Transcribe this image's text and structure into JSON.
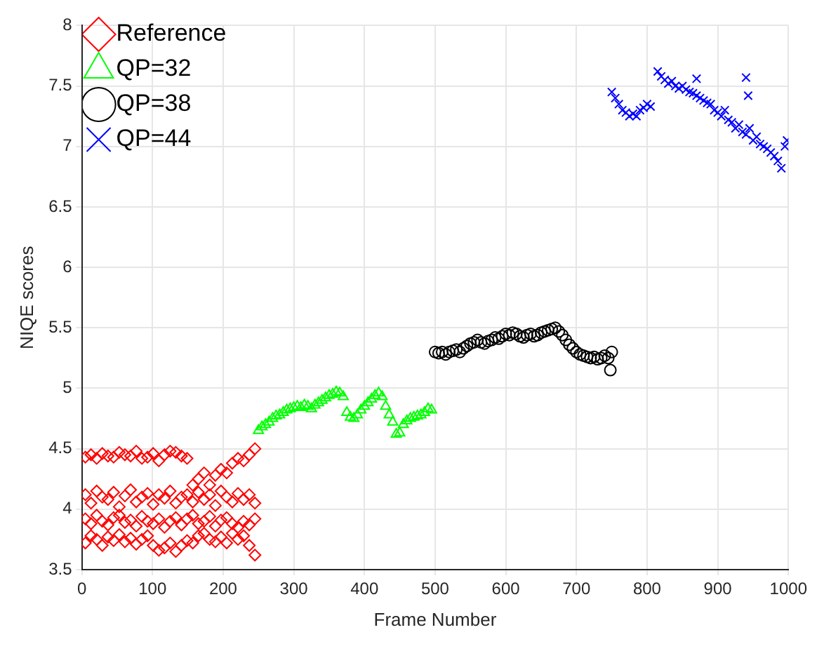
{
  "chart_data": {
    "type": "scatter",
    "xlabel": "Frame Number",
    "ylabel": "NIQE scores",
    "xlim": [
      0,
      1000
    ],
    "xticks": [
      0,
      100,
      200,
      300,
      400,
      500,
      600,
      700,
      800,
      900,
      1000
    ],
    "ylim": [
      3.5,
      8
    ],
    "yticks": [
      3.5,
      4,
      4.5,
      5,
      5.5,
      6,
      6.5,
      7,
      7.5,
      8
    ],
    "grid": true,
    "legend": "top left",
    "series": [
      {
        "name": "Reference",
        "color": "#ff0000",
        "marker": "diamond",
        "x": [
          5,
          13,
          21,
          29,
          37,
          45,
          53,
          61,
          69,
          77,
          85,
          93,
          101,
          109,
          117,
          125,
          133,
          141,
          149,
          157,
          165,
          173,
          181,
          189,
          197,
          205,
          213,
          221,
          229,
          237,
          245,
          5,
          13,
          21,
          29,
          37,
          45,
          53,
          61,
          69,
          77,
          85,
          93,
          101,
          109,
          117,
          125,
          133,
          141,
          149,
          157,
          165,
          173,
          181,
          189,
          197,
          205,
          213,
          221,
          229,
          237,
          245,
          5,
          13,
          21,
          29,
          37,
          45,
          53,
          61,
          69,
          77,
          85,
          93,
          101,
          109,
          117,
          125,
          133,
          141,
          149,
          157,
          165,
          173,
          181,
          189,
          197,
          205,
          213,
          221,
          229,
          237,
          245,
          5,
          13,
          21,
          29,
          37,
          45,
          53,
          61,
          69,
          77,
          85,
          93,
          101,
          109,
          117,
          125,
          133,
          141,
          149,
          157,
          165,
          173,
          181,
          189,
          197,
          205,
          213,
          221,
          229,
          237,
          245
        ],
        "values": [
          4.43,
          4.45,
          4.42,
          4.46,
          4.44,
          4.43,
          4.47,
          4.45,
          4.44,
          4.48,
          4.42,
          4.43,
          4.46,
          4.4,
          4.45,
          4.48,
          4.47,
          4.44,
          4.42,
          4.2,
          4.25,
          4.3,
          4.2,
          4.28,
          4.33,
          4.3,
          4.38,
          4.42,
          4.4,
          4.45,
          4.5,
          4.12,
          4.05,
          4.15,
          4.1,
          4.08,
          4.14,
          4.02,
          4.11,
          4.16,
          4.06,
          4.1,
          4.13,
          4.04,
          4.12,
          4.09,
          4.15,
          4.05,
          4.1,
          4.12,
          4.06,
          4.14,
          4.08,
          4.12,
          4.03,
          4.15,
          4.1,
          4.06,
          4.13,
          4.08,
          4.12,
          4.05,
          3.92,
          3.88,
          3.95,
          3.9,
          3.87,
          3.93,
          3.95,
          3.89,
          3.91,
          3.86,
          3.94,
          3.9,
          3.88,
          3.92,
          3.85,
          3.9,
          3.93,
          3.87,
          3.92,
          3.95,
          3.88,
          3.9,
          3.94,
          3.86,
          3.91,
          3.93,
          3.88,
          3.85,
          3.9,
          3.87,
          3.92,
          3.72,
          3.78,
          3.75,
          3.7,
          3.77,
          3.74,
          3.79,
          3.73,
          3.76,
          3.71,
          3.75,
          3.78,
          3.7,
          3.66,
          3.68,
          3.72,
          3.65,
          3.7,
          3.74,
          3.72,
          3.78,
          3.8,
          3.75,
          3.73,
          3.77,
          3.72,
          3.8,
          3.75,
          3.78,
          3.7,
          3.62
        ]
      },
      {
        "name": "QP=32",
        "color": "#00ff00",
        "marker": "triangle",
        "x": [
          250,
          255,
          260,
          265,
          270,
          275,
          280,
          285,
          290,
          295,
          300,
          305,
          310,
          315,
          320,
          325,
          330,
          335,
          340,
          345,
          350,
          355,
          360,
          365,
          370,
          375,
          380,
          385,
          390,
          395,
          400,
          405,
          410,
          415,
          420,
          425,
          430,
          435,
          440,
          445,
          450,
          455,
          460,
          465,
          470,
          475,
          480,
          485,
          490,
          495
        ],
        "values": [
          4.65,
          4.68,
          4.7,
          4.72,
          4.75,
          4.77,
          4.78,
          4.8,
          4.82,
          4.83,
          4.84,
          4.85,
          4.84,
          4.86,
          4.85,
          4.83,
          4.86,
          4.88,
          4.9,
          4.92,
          4.94,
          4.95,
          4.97,
          4.96,
          4.93,
          4.8,
          4.76,
          4.75,
          4.78,
          4.82,
          4.85,
          4.88,
          4.91,
          4.94,
          4.96,
          4.93,
          4.85,
          4.78,
          4.72,
          4.62,
          4.63,
          4.7,
          4.73,
          4.75,
          4.76,
          4.77,
          4.78,
          4.8,
          4.83,
          4.82
        ]
      },
      {
        "name": "QP=38",
        "color": "#000000",
        "marker": "circle",
        "x": [
          500,
          505,
          510,
          515,
          520,
          525,
          530,
          535,
          540,
          545,
          550,
          555,
          560,
          565,
          570,
          575,
          580,
          585,
          590,
          595,
          600,
          605,
          610,
          615,
          620,
          625,
          630,
          635,
          640,
          645,
          650,
          655,
          660,
          665,
          670,
          675,
          680,
          685,
          690,
          695,
          700,
          705,
          710,
          715,
          720,
          725,
          730,
          735,
          740,
          745,
          750,
          748
        ],
        "values": [
          5.3,
          5.29,
          5.3,
          5.28,
          5.3,
          5.31,
          5.32,
          5.3,
          5.33,
          5.35,
          5.37,
          5.38,
          5.4,
          5.38,
          5.37,
          5.39,
          5.4,
          5.42,
          5.41,
          5.43,
          5.45,
          5.44,
          5.46,
          5.45,
          5.43,
          5.42,
          5.44,
          5.45,
          5.43,
          5.44,
          5.46,
          5.47,
          5.48,
          5.49,
          5.5,
          5.47,
          5.44,
          5.4,
          5.36,
          5.33,
          5.3,
          5.28,
          5.27,
          5.26,
          5.25,
          5.26,
          5.24,
          5.25,
          5.27,
          5.25,
          5.3,
          5.15
        ]
      },
      {
        "name": "QP=44",
        "color": "#0000ff",
        "marker": "cross",
        "x": [
          750,
          755,
          760,
          765,
          770,
          775,
          780,
          785,
          790,
          795,
          800,
          805,
          815,
          820,
          825,
          830,
          835,
          840,
          845,
          850,
          855,
          860,
          865,
          870,
          875,
          880,
          885,
          890,
          895,
          900,
          905,
          910,
          915,
          920,
          925,
          930,
          935,
          940,
          945,
          950,
          955,
          960,
          965,
          970,
          975,
          980,
          985,
          990,
          995,
          998,
          870,
          940,
          943
        ],
        "values": [
          7.45,
          7.4,
          7.35,
          7.3,
          7.28,
          7.25,
          7.27,
          7.25,
          7.3,
          7.32,
          7.35,
          7.33,
          7.62,
          7.58,
          7.55,
          7.52,
          7.54,
          7.5,
          7.48,
          7.5,
          7.47,
          7.45,
          7.44,
          7.42,
          7.4,
          7.38,
          7.36,
          7.35,
          7.3,
          7.28,
          7.25,
          7.3,
          7.22,
          7.2,
          7.15,
          7.18,
          7.12,
          7.1,
          7.15,
          7.05,
          7.08,
          7.02,
          7,
          6.98,
          6.95,
          6.92,
          6.88,
          6.82,
          7,
          7.05,
          7.56,
          7.57,
          7.42
        ]
      }
    ]
  }
}
